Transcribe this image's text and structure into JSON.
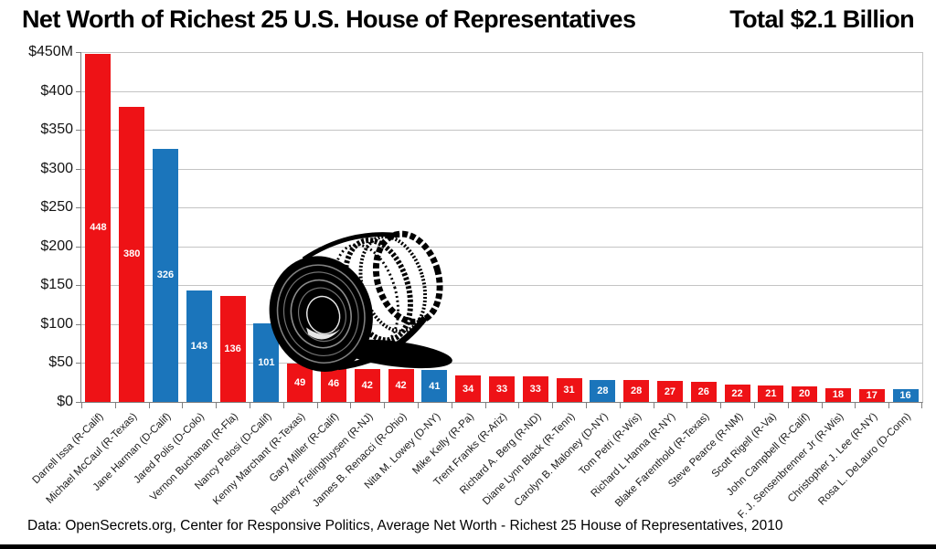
{
  "title": {
    "main": "Net Worth of Richest 25 U.S. House of Representatives",
    "total": "Total $2.1 Billion"
  },
  "footer": "Data: OpenSecrets.org, Center for Responsive Politics, Average Net Worth - Richest 25 House of Representatives, 2010",
  "colors": {
    "republican": "#EE1216",
    "democrat": "#1B75BB",
    "gridline": "#C4C4C4",
    "axis": "#7F7F7F"
  },
  "chart_data": {
    "type": "bar",
    "title": "Net Worth of Richest 25 U.S. House of Representatives Total $2.1 Billion",
    "xlabel": "",
    "ylabel": "",
    "ylim": [
      0,
      450
    ],
    "y_ticks": [
      "$450M",
      "$400",
      "$350",
      "$300",
      "$250",
      "$200",
      "$150",
      "$100",
      "$50",
      "$0"
    ],
    "grid": "horizontal",
    "legend": "none",
    "value_labels": "inside-center",
    "categories": [
      "Darrell Issa (R-Calif)",
      "Michael McCaul (R-Texas)",
      "Jane Harman (D-Calif)",
      "Jared Polis (D-Colo)",
      "Vernon Buchanan (R-Fla)",
      "Nancy Pelosi (D-Calif)",
      "Kenny Marchant (R-Texas)",
      "Gary Miller (R-Calif)",
      "Rodney Frelinghuysen (R-NJ)",
      "James B. Renacci (R-Ohio)",
      "Nita M. Lowey (D-NY)",
      "Mike Kelly (R-Pa)",
      "Trent Franks (R-Ariz)",
      "Richard A. Berg (R-ND)",
      "Diane Lynn Black (R-Tenn)",
      "Carolyn B. Maloney (D-NY)",
      "Tom Petri (R-Wis)",
      "Richard L Hanna (R-NY)",
      "Blake Farenthold (R-Texas)",
      "Steve Pearce (R-NM)",
      "Scott Rigell (R-Va)",
      "John Campbell (R-Calif)",
      "F. J. Sensenbrenner Jr (R-Wis)",
      "Christopher J. Lee (R-NY)",
      "Rosa L. DeLauro (D-Conn)"
    ],
    "values": [
      448,
      380,
      326,
      143,
      136,
      101,
      49,
      46,
      42,
      42,
      41,
      34,
      33,
      33,
      31,
      28,
      28,
      27,
      26,
      22,
      21,
      20,
      18,
      17,
      16
    ],
    "parties": [
      "R",
      "R",
      "D",
      "D",
      "R",
      "D",
      "R",
      "R",
      "R",
      "R",
      "D",
      "R",
      "R",
      "R",
      "R",
      "D",
      "R",
      "R",
      "R",
      "R",
      "R",
      "R",
      "R",
      "R",
      "D"
    ]
  }
}
